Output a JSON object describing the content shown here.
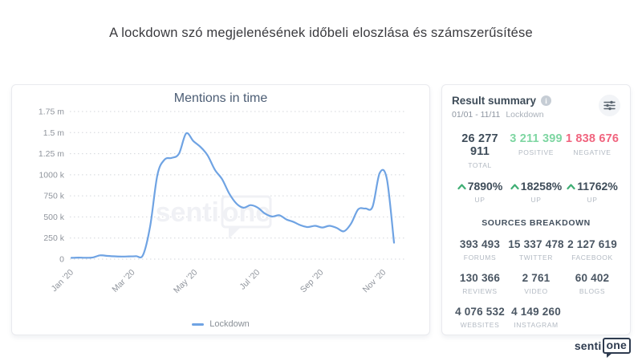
{
  "page": {
    "title": "A lockdown szó megjelenésének időbeli eloszlása és számszerűsítése",
    "brand": {
      "prefix": "senti",
      "suffix": "one"
    }
  },
  "chart_card": {
    "title": "Mentions in time",
    "watermark": {
      "prefix": "senti",
      "suffix": "one"
    }
  },
  "chart_data": {
    "type": "line",
    "title": "Mentions in time",
    "xlabel": "",
    "ylabel": "",
    "ylim_k": [
      0,
      1750
    ],
    "x_range_days": [
      0,
      315
    ],
    "grid": "dotted-horizontal",
    "legend_position": "bottom",
    "y_ticks": [
      {
        "value_k": 0,
        "label": "0"
      },
      {
        "value_k": 250,
        "label": "250 k"
      },
      {
        "value_k": 500,
        "label": "500 k"
      },
      {
        "value_k": 750,
        "label": "750 k"
      },
      {
        "value_k": 1000,
        "label": "1000 k"
      },
      {
        "value_k": 1250,
        "label": "1.25 m"
      },
      {
        "value_k": 1500,
        "label": "1.5 m"
      },
      {
        "value_k": 1750,
        "label": "1.75 m"
      }
    ],
    "x_ticks": [
      {
        "day": 0,
        "label": "Jan ’20"
      },
      {
        "day": 60,
        "label": "Mar ’20"
      },
      {
        "day": 121,
        "label": "May ’20"
      },
      {
        "day": 182,
        "label": "Jul ’20"
      },
      {
        "day": 244,
        "label": "Sep ’20"
      },
      {
        "day": 305,
        "label": "Nov ’20"
      }
    ],
    "series": [
      {
        "name": "Lockdown",
        "color": "#6FA3E3",
        "x_days": [
          0,
          7,
          14,
          21,
          28,
          35,
          42,
          49,
          56,
          63,
          70,
          77,
          84,
          91,
          98,
          105,
          112,
          119,
          126,
          133,
          140,
          147,
          154,
          161,
          168,
          175,
          182,
          189,
          196,
          203,
          210,
          217,
          224,
          231,
          238,
          245,
          252,
          259,
          266,
          273,
          280,
          287,
          294,
          301,
          308,
          315
        ],
        "values_k": [
          15,
          18,
          16,
          20,
          45,
          38,
          33,
          30,
          32,
          35,
          50,
          400,
          1000,
          1180,
          1200,
          1250,
          1490,
          1400,
          1330,
          1230,
          1060,
          950,
          780,
          660,
          610,
          640,
          610,
          540,
          505,
          520,
          470,
          440,
          400,
          380,
          395,
          375,
          395,
          370,
          330,
          420,
          590,
          600,
          620,
          1020,
          950,
          195
        ]
      }
    ]
  },
  "summary_card": {
    "title": "Result summary",
    "date_range": "01/01 - 11/11",
    "keyword": "Lockdown",
    "colors": {
      "total": "#3E4C59",
      "positive": "#7ED6A2",
      "negative": "#F0647E",
      "up_arrow": "#3FAE74"
    },
    "totals": [
      {
        "value": "26 277 911",
        "label": "TOTAL",
        "color": "#3E4C59"
      },
      {
        "value": "3 211 399",
        "label": "POSITIVE",
        "color": "#7ED6A2"
      },
      {
        "value": "1 838 676",
        "label": "NEGATIVE",
        "color": "#F0647E"
      }
    ],
    "changes": [
      {
        "value": "7890%",
        "label": "UP"
      },
      {
        "value": "18258%",
        "label": "UP"
      },
      {
        "value": "11762%",
        "label": "UP"
      }
    ],
    "sources_title": "SOURCES BREAKDOWN",
    "sources": [
      {
        "value": "393 493",
        "label": "FORUMS"
      },
      {
        "value": "15 337 478",
        "label": "TWITTER"
      },
      {
        "value": "2 127 619",
        "label": "FACEBOOK"
      },
      {
        "value": "130 366",
        "label": "REVIEWS"
      },
      {
        "value": "2 761",
        "label": "VIDEO"
      },
      {
        "value": "60 402",
        "label": "BLOGS"
      },
      {
        "value": "4 076 532",
        "label": "WEBSITES"
      },
      {
        "value": "4 149 260",
        "label": "INSTAGRAM"
      }
    ]
  }
}
